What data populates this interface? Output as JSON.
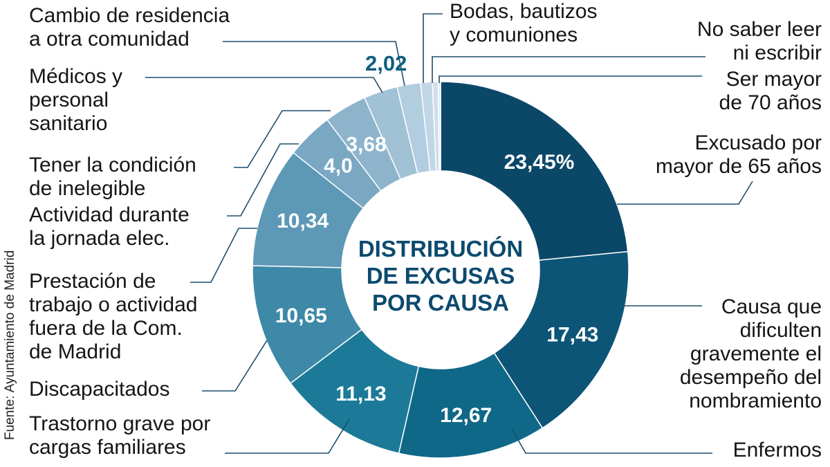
{
  "chart_data": {
    "type": "pie",
    "variant": "donut",
    "title": "DISTRIBUCIÓN\nDE EXCUSAS\nPOR CAUSA",
    "source": "Fuente: Ayuntamiento de Madrid",
    "unit": "%",
    "slices": [
      {
        "label": "Excusado por\nmayor de 65 años",
        "value": 23.45,
        "display": "23,45%",
        "color": "#0b4868"
      },
      {
        "label": "Causa que\ndificulten\ngravemente el\ndesempeño del\nnombramiento",
        "value": 17.43,
        "display": "17,43",
        "color": "#0d5577"
      },
      {
        "label": "Enfermos",
        "value": 12.67,
        "display": "12,67",
        "color": "#0f6887"
      },
      {
        "label": "Trastorno grave por\ncargas familiares",
        "value": 11.13,
        "display": "11,13",
        "color": "#1c7a98"
      },
      {
        "label": "Discapacitados",
        "value": 10.65,
        "display": "10,65",
        "color": "#3e89a8"
      },
      {
        "label": "Prestación de\ntrabajo o actividad\nfuera de la Com.\nde Madrid",
        "value": 10.34,
        "display": "10,34",
        "color": "#5d98b6"
      },
      {
        "label": "Actividad durante\nla jornada elec.",
        "value": 4.0,
        "display": "4,0",
        "color": "#7aa8c3"
      },
      {
        "label": "Tener la condición\nde inelegible",
        "value": 3.68,
        "display": "3,68",
        "color": "#8db4cb"
      },
      {
        "label": "Médicos y\npersonal\nsanitario",
        "value": 2.9,
        "display": null,
        "color": "#a1c1d5"
      },
      {
        "label": "Cambio de residencia\na otra comunidad",
        "value": 2.02,
        "display": "2,02",
        "color": "#b2cce0"
      },
      {
        "label": "Bodas, bautizos\ny comuniones",
        "value": 1.0,
        "display": null,
        "color": "#c1d6e6"
      },
      {
        "label": "No saber leer\nni escribir",
        "value": 0.5,
        "display": null,
        "color": "#cfdfeb"
      },
      {
        "label": "Ser mayor\nde 70 años",
        "value": 0.2,
        "display": null,
        "color": "#dbe7f0"
      }
    ]
  }
}
